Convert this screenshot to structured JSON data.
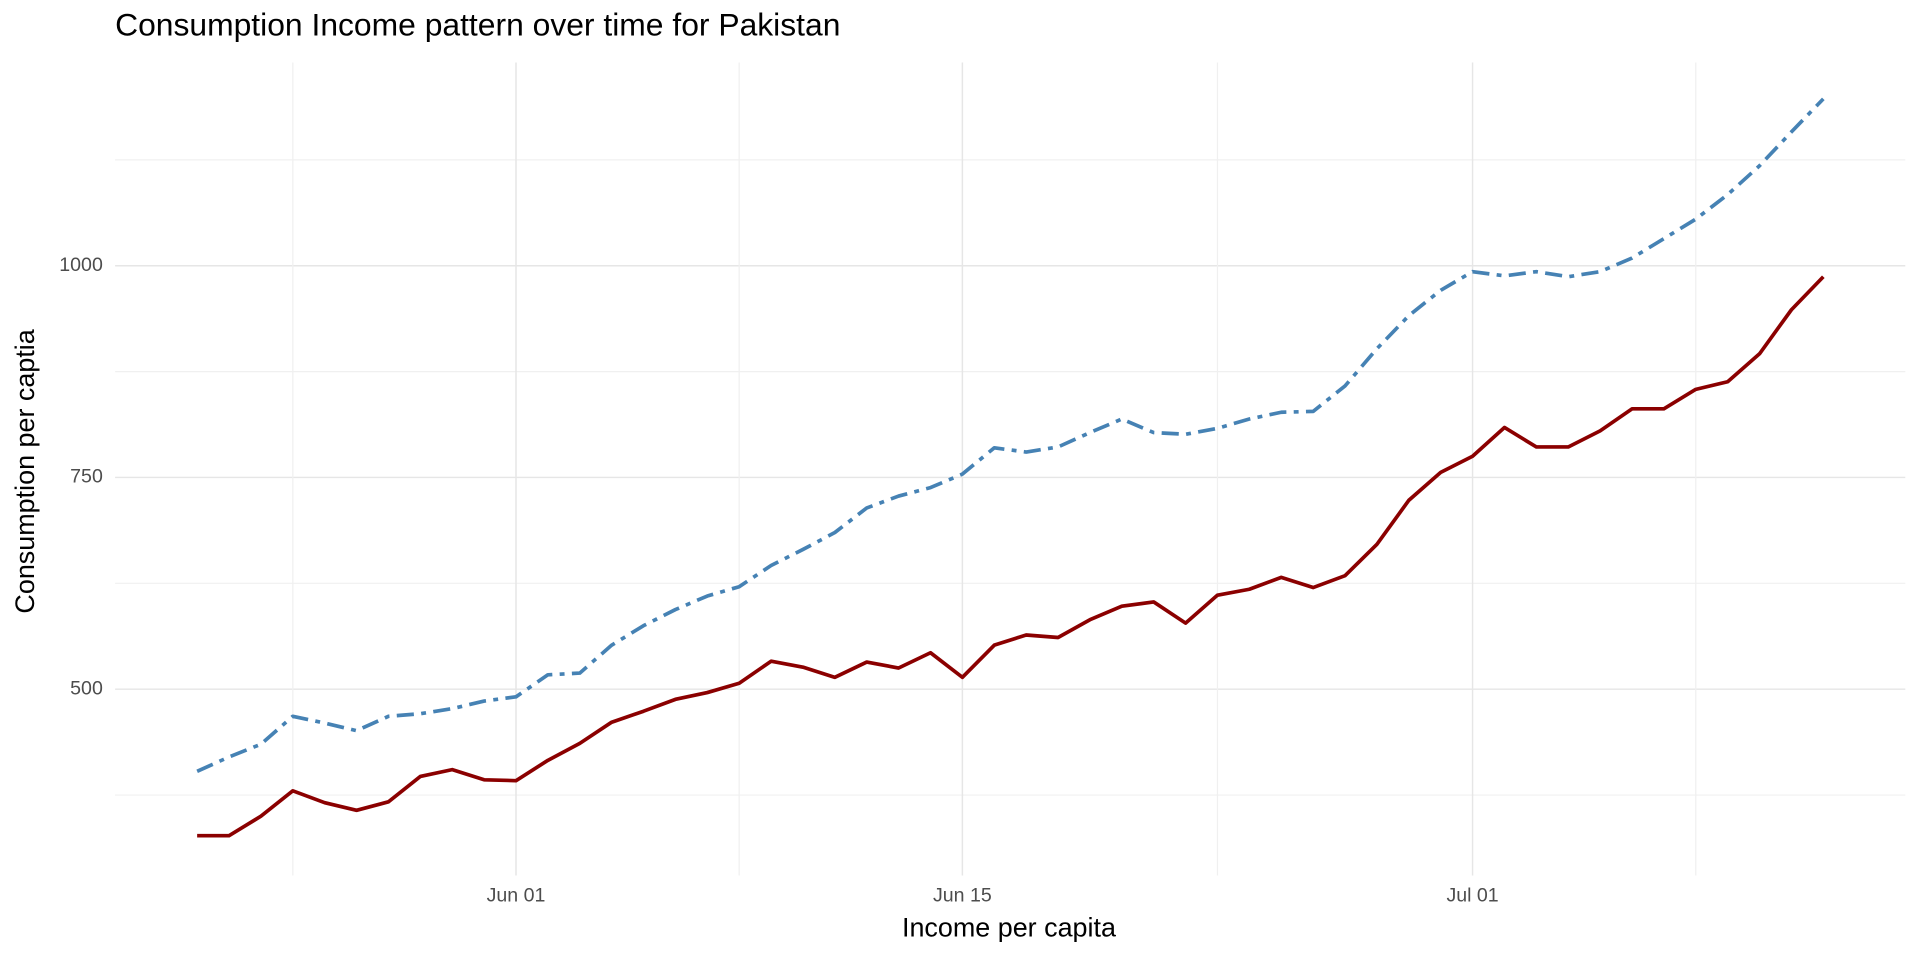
{
  "chart_data": {
    "type": "line",
    "title": "Consumption Income pattern over time for Pakistan",
    "x_label": "Income per capita",
    "y_label": "Consumption per captia",
    "categories": [
      "May 22",
      "May 23",
      "May 24",
      "May 25",
      "May 26",
      "May 27",
      "May 28",
      "May 29",
      "May 30",
      "May 31",
      "Jun 01",
      "Jun 02",
      "Jun 03",
      "Jun 04",
      "Jun 05",
      "Jun 06",
      "Jun 07",
      "Jun 08",
      "Jun 09",
      "Jun 10",
      "Jun 11",
      "Jun 12",
      "Jun 13",
      "Jun 14",
      "Jun 15",
      "Jun 16",
      "Jun 17",
      "Jun 18",
      "Jun 19",
      "Jun 20",
      "Jun 21",
      "Jun 22",
      "Jun 23",
      "Jun 24",
      "Jun 25",
      "Jun 26",
      "Jun 27",
      "Jun 28",
      "Jun 29",
      "Jun 30",
      "Jul 01",
      "Jul 02",
      "Jul 03",
      "Jul 04",
      "Jul 05",
      "Jul 06",
      "Jul 07",
      "Jul 08",
      "Jul 09",
      "Jul 10",
      "Jul 11",
      "Jul 12"
    ],
    "xticks": [
      "Jun 01",
      "Jun 15",
      "Jul 01"
    ],
    "series": [
      {
        "color": "#4682b4",
        "line_style": "dashdot",
        "values": [
          403,
          420,
          435,
          468,
          460,
          451,
          468,
          471,
          477,
          486,
          491,
          517,
          519,
          552,
          575,
          594,
          610,
          621,
          646,
          665,
          685,
          714,
          728,
          738,
          754,
          785,
          780,
          786,
          803,
          819,
          803,
          801,
          808,
          819,
          827,
          828,
          858,
          902,
          941,
          971,
          993,
          988,
          993,
          987,
          993,
          1009,
          1032,
          1055,
          1084,
          1118,
          1158,
          1197
        ]
      },
      {
        "color": "#8b0000",
        "line_style": "solid",
        "values": [
          327,
          327,
          350,
          380,
          366,
          357,
          367,
          397,
          405,
          393,
          392,
          416,
          436,
          461,
          474,
          488,
          496,
          507,
          533,
          526,
          514,
          532,
          525,
          543,
          514,
          552,
          564,
          561,
          582,
          598,
          603,
          578,
          611,
          618,
          632,
          620,
          634,
          671,
          723,
          756,
          775,
          809,
          786,
          786,
          805,
          831,
          831,
          854,
          863,
          896,
          948,
          987
        ]
      }
    ],
    "ylim": [
      280,
      1240
    ],
    "yticks": [
      500,
      750,
      1000
    ],
    "grid": true
  }
}
